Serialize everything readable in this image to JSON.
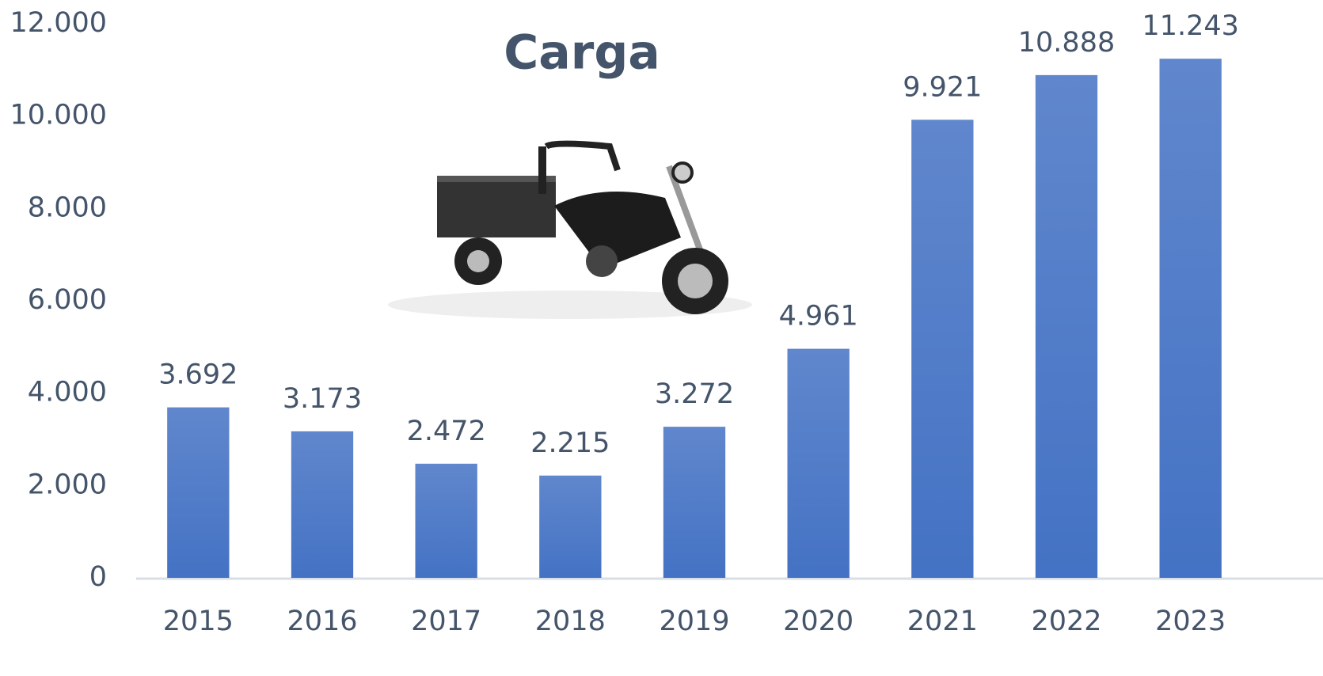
{
  "chart_data": {
    "type": "bar",
    "title": "Carga",
    "categories": [
      "2015",
      "2016",
      "2017",
      "2018",
      "2019",
      "2020",
      "2021",
      "2022",
      "2023"
    ],
    "values": [
      3692,
      3173,
      2472,
      2215,
      3272,
      4961,
      9921,
      10888,
      11243
    ],
    "value_labels": [
      "3.692",
      "3.173",
      "2.472",
      "2.215",
      "3.272",
      "4.961",
      "9.921",
      "10.888",
      "11.243"
    ],
    "color": "#4472c4",
    "ylim": [
      0,
      12000
    ],
    "yticks": [
      0,
      {
        "value": 2000,
        "label": "2.000"
      },
      {
        "value": 4000,
        "label": "4.000"
      },
      {
        "value": 6000,
        "label": "6.000"
      },
      {
        "value": 8000,
        "label": "8.000"
      },
      {
        "value": 10000,
        "label": "10.000"
      },
      {
        "value": 12000,
        "label": "12.000"
      }
    ],
    "grid": false
  }
}
